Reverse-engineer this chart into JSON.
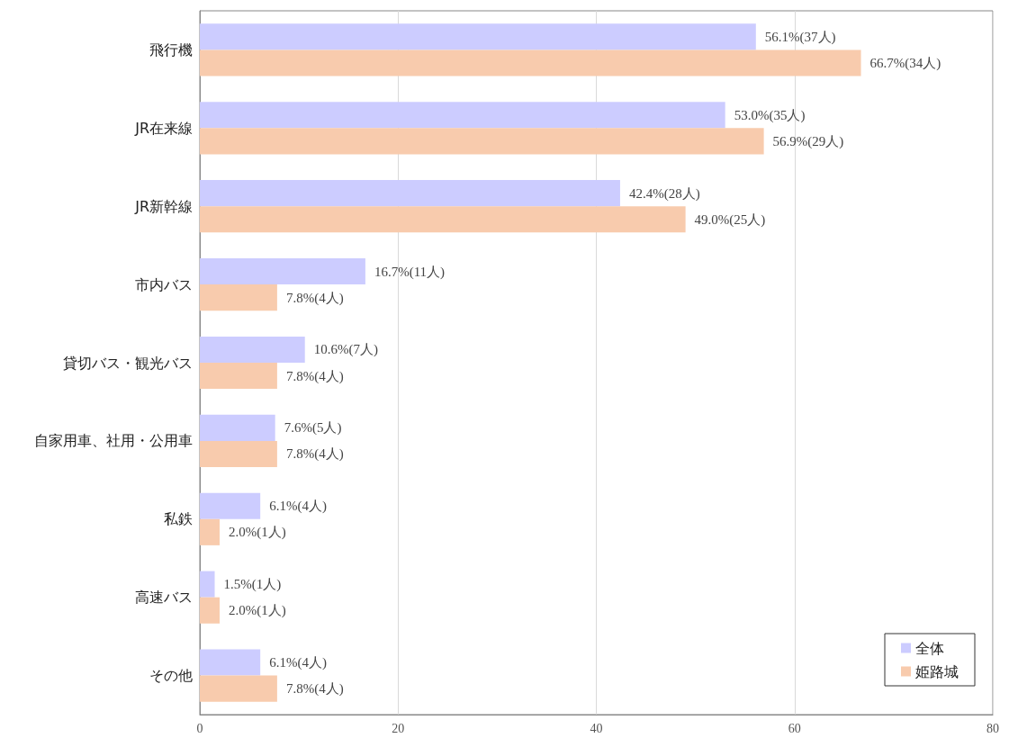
{
  "chart_data": {
    "type": "bar",
    "orientation": "horizontal",
    "categories": [
      "飛行機",
      "JR在来線",
      "JR新幹線",
      "市内バス",
      "貸切バス・観光バス",
      "自家用車、社用・公用車",
      "私鉄",
      "高速バス",
      "その他"
    ],
    "series": [
      {
        "name": "全体",
        "color": "#ccccff",
        "values": [
          56.1,
          53.0,
          42.4,
          16.7,
          10.6,
          7.6,
          6.1,
          1.5,
          6.1
        ],
        "value_labels": [
          "56.1%(37人)",
          "53.0%(35人)",
          "42.4%(28人)",
          "16.7%(11人)",
          "10.6%(7人)",
          "7.6%(5人)",
          "6.1%(4人)",
          "1.5%(1人)",
          "6.1%(4人)"
        ]
      },
      {
        "name": "姫路城",
        "color": "#f8cbad",
        "values": [
          66.7,
          56.9,
          49.0,
          7.8,
          7.8,
          7.8,
          2.0,
          2.0,
          7.8
        ],
        "value_labels": [
          "66.7%(34人)",
          "56.9%(29人)",
          "49.0%(25人)",
          "7.8%(4人)",
          "7.8%(4人)",
          "7.8%(4人)",
          "2.0%(1人)",
          "2.0%(1人)",
          "7.8%(4人)"
        ]
      }
    ],
    "xlim": [
      0,
      80
    ],
    "xticks": [
      0,
      20,
      40,
      60,
      80
    ],
    "grid": "x",
    "legend": "bottom right"
  }
}
